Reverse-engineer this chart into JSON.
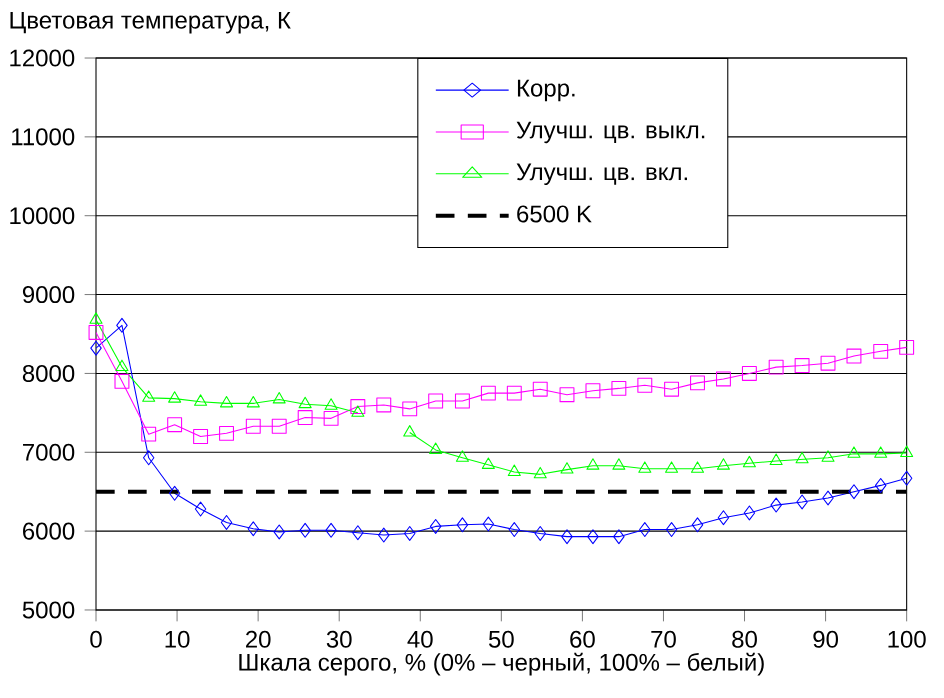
{
  "chart_data": {
    "type": "line",
    "ylabel": "Цветовая температура, К",
    "xlabel": "Шкала серого, % (0% – черный, 100% – белый)",
    "x": [
      0,
      3.2,
      6.5,
      9.7,
      12.9,
      16.1,
      19.4,
      22.6,
      25.8,
      29.0,
      32.3,
      35.5,
      38.7,
      41.9,
      45.2,
      48.4,
      51.6,
      54.8,
      58.1,
      61.3,
      64.5,
      67.7,
      71.0,
      74.2,
      77.4,
      80.6,
      83.9,
      87.1,
      90.3,
      93.5,
      96.8,
      100
    ],
    "series": [
      {
        "name": "Корр.",
        "color": "#0000ff",
        "marker": "diamond",
        "values": [
          8320,
          8610,
          6930,
          6480,
          6280,
          6110,
          6030,
          5990,
          6010,
          6010,
          5980,
          5950,
          5970,
          6060,
          6080,
          6090,
          6020,
          5970,
          5930,
          5930,
          5930,
          6020,
          6020,
          6080,
          6170,
          6230,
          6330,
          6370,
          6420,
          6500,
          6580,
          6670
        ]
      },
      {
        "name": "Улучш. цв. выкл.",
        "color": "#ff00ff",
        "marker": "square",
        "values": [
          8520,
          7900,
          7230,
          7350,
          7200,
          7240,
          7330,
          7330,
          7440,
          7430,
          7580,
          7600,
          7550,
          7650,
          7650,
          7750,
          7750,
          7800,
          7730,
          7780,
          7810,
          7850,
          7800,
          7880,
          7930,
          8000,
          8080,
          8100,
          8130,
          8220,
          8280,
          8330
        ]
      },
      {
        "name": "Улучш. цв. вкл.",
        "color": "#00ff00",
        "marker": "triangle",
        "values": [
          8680,
          8080,
          7690,
          7680,
          7640,
          7620,
          7620,
          7670,
          7610,
          7590,
          7500,
          null,
          7250,
          7030,
          6930,
          6840,
          6750,
          6720,
          6780,
          6830,
          6830,
          6790,
          6790,
          6790,
          6830,
          6860,
          6890,
          6910,
          6930,
          6980,
          6980,
          6990
        ]
      }
    ],
    "ref_lines": [
      {
        "axis": "y",
        "value": 6500,
        "label": "6500 K",
        "color": "#000000",
        "line_style": "dashed"
      }
    ],
    "xlim": [
      0,
      100
    ],
    "xticks": [
      0,
      10,
      20,
      30,
      40,
      50,
      60,
      70,
      80,
      90,
      100
    ],
    "ylim": [
      5000,
      12000
    ],
    "yticks": [
      5000,
      6000,
      7000,
      8000,
      9000,
      10000,
      11000,
      12000
    ],
    "grid": "y",
    "legend": "top right",
    "line_style": "solid"
  }
}
